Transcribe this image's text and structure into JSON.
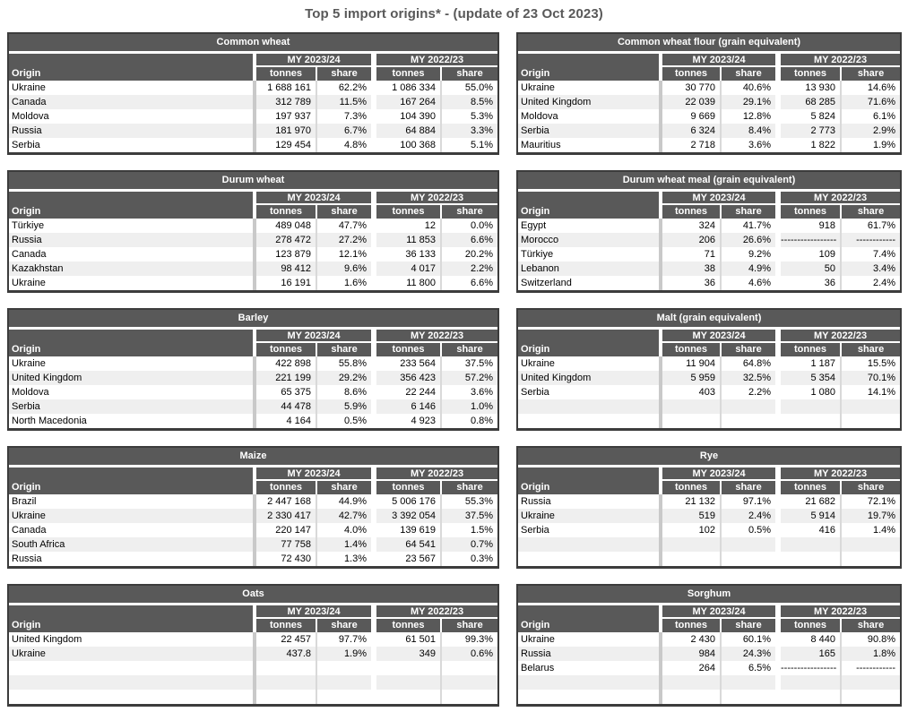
{
  "page_title": "Top 5 import origins* - (update of 23 Oct 2023)",
  "labels": {
    "origin": "Origin",
    "tonnes": "tonnes",
    "share": "share",
    "my_current": "MY 2023/24",
    "my_previous": "MY 2022/23"
  },
  "colors": {
    "header_bg": "#595959",
    "header_text": "#ffffff",
    "row_alt_bg": "#efefef",
    "border_dark": "#3c3c3c",
    "separator_gray": "#c9c9c9",
    "separator_thin": "#d9d9d9",
    "page_title_color": "#595959"
  },
  "tables": [
    {
      "title": "Common wheat",
      "column": "left",
      "empty_rows": 0,
      "rows": [
        {
          "origin": "Ukraine",
          "tonnes_2324": "1 688 161",
          "share_2324": "62.2%",
          "tonnes_2223": "1 086 334",
          "share_2223": "55.0%"
        },
        {
          "origin": "Canada",
          "tonnes_2324": "312 789",
          "share_2324": "11.5%",
          "tonnes_2223": "167 264",
          "share_2223": "8.5%"
        },
        {
          "origin": "Moldova",
          "tonnes_2324": "197 937",
          "share_2324": "7.3%",
          "tonnes_2223": "104 390",
          "share_2223": "5.3%"
        },
        {
          "origin": "Russia",
          "tonnes_2324": "181 970",
          "share_2324": "6.7%",
          "tonnes_2223": "64 884",
          "share_2223": "3.3%"
        },
        {
          "origin": "Serbia",
          "tonnes_2324": "129 454",
          "share_2324": "4.8%",
          "tonnes_2223": "100 368",
          "share_2223": "5.1%"
        }
      ]
    },
    {
      "title": "Common wheat flour (grain equivalent)",
      "column": "right",
      "empty_rows": 0,
      "rows": [
        {
          "origin": "Ukraine",
          "tonnes_2324": "30 770",
          "share_2324": "40.6%",
          "tonnes_2223": "13 930",
          "share_2223": "14.6%"
        },
        {
          "origin": "United Kingdom",
          "tonnes_2324": "22 039",
          "share_2324": "29.1%",
          "tonnes_2223": "68 285",
          "share_2223": "71.6%"
        },
        {
          "origin": "Moldova",
          "tonnes_2324": "9 669",
          "share_2324": "12.8%",
          "tonnes_2223": "5 824",
          "share_2223": "6.1%"
        },
        {
          "origin": "Serbia",
          "tonnes_2324": "6 324",
          "share_2324": "8.4%",
          "tonnes_2223": "2 773",
          "share_2223": "2.9%"
        },
        {
          "origin": "Mauritius",
          "tonnes_2324": "2 718",
          "share_2324": "3.6%",
          "tonnes_2223": "1 822",
          "share_2223": "1.9%"
        }
      ]
    },
    {
      "title": "Durum wheat",
      "column": "left",
      "empty_rows": 0,
      "rows": [
        {
          "origin": "Türkiye",
          "tonnes_2324": "489 048",
          "share_2324": "47.7%",
          "tonnes_2223": "12",
          "share_2223": "0.0%"
        },
        {
          "origin": "Russia",
          "tonnes_2324": "278 472",
          "share_2324": "27.2%",
          "tonnes_2223": "11 853",
          "share_2223": "6.6%"
        },
        {
          "origin": "Canada",
          "tonnes_2324": "123 879",
          "share_2324": "12.1%",
          "tonnes_2223": "36 133",
          "share_2223": "20.2%"
        },
        {
          "origin": "Kazakhstan",
          "tonnes_2324": "98 412",
          "share_2324": "9.6%",
          "tonnes_2223": "4 017",
          "share_2223": "2.2%"
        },
        {
          "origin": "Ukraine",
          "tonnes_2324": "16 191",
          "share_2324": "1.6%",
          "tonnes_2223": "11 800",
          "share_2223": "6.6%"
        }
      ]
    },
    {
      "title": "Durum wheat meal (grain equivalent)",
      "column": "right",
      "empty_rows": 0,
      "rows": [
        {
          "origin": "Egypt",
          "tonnes_2324": "324",
          "share_2324": "41.7%",
          "tonnes_2223": "918",
          "share_2223": "61.7%"
        },
        {
          "origin": "Morocco",
          "tonnes_2324": "206",
          "share_2324": "26.6%",
          "tonnes_2223": "-----------------",
          "share_2223": "------------"
        },
        {
          "origin": "Türkiye",
          "tonnes_2324": "71",
          "share_2324": "9.2%",
          "tonnes_2223": "109",
          "share_2223": "7.4%"
        },
        {
          "origin": "Lebanon",
          "tonnes_2324": "38",
          "share_2324": "4.9%",
          "tonnes_2223": "50",
          "share_2223": "3.4%"
        },
        {
          "origin": "Switzerland",
          "tonnes_2324": "36",
          "share_2324": "4.6%",
          "tonnes_2223": "36",
          "share_2223": "2.4%"
        }
      ]
    },
    {
      "title": "Barley",
      "column": "left",
      "empty_rows": 0,
      "rows": [
        {
          "origin": "Ukraine",
          "tonnes_2324": "422 898",
          "share_2324": "55.8%",
          "tonnes_2223": "233 564",
          "share_2223": "37.5%"
        },
        {
          "origin": "United Kingdom",
          "tonnes_2324": "221 199",
          "share_2324": "29.2%",
          "tonnes_2223": "356 423",
          "share_2223": "57.2%"
        },
        {
          "origin": "Moldova",
          "tonnes_2324": "65 375",
          "share_2324": "8.6%",
          "tonnes_2223": "22 244",
          "share_2223": "3.6%"
        },
        {
          "origin": "Serbia",
          "tonnes_2324": "44 478",
          "share_2324": "5.9%",
          "tonnes_2223": "6 146",
          "share_2223": "1.0%"
        },
        {
          "origin": "North Macedonia",
          "tonnes_2324": "4 164",
          "share_2324": "0.5%",
          "tonnes_2223": "4 923",
          "share_2223": "0.8%"
        }
      ]
    },
    {
      "title": "Malt (grain equivalent)",
      "column": "right",
      "empty_rows": 2,
      "rows": [
        {
          "origin": "Ukraine",
          "tonnes_2324": "11 904",
          "share_2324": "64.8%",
          "tonnes_2223": "1 187",
          "share_2223": "15.5%"
        },
        {
          "origin": "United Kingdom",
          "tonnes_2324": "5 959",
          "share_2324": "32.5%",
          "tonnes_2223": "5 354",
          "share_2223": "70.1%"
        },
        {
          "origin": "Serbia",
          "tonnes_2324": "403",
          "share_2324": "2.2%",
          "tonnes_2223": "1 080",
          "share_2223": "14.1%"
        }
      ]
    },
    {
      "title": "Maize",
      "column": "left",
      "empty_rows": 0,
      "rows": [
        {
          "origin": "Brazil",
          "tonnes_2324": "2 447 168",
          "share_2324": "44.9%",
          "tonnes_2223": "5 006 176",
          "share_2223": "55.3%"
        },
        {
          "origin": "Ukraine",
          "tonnes_2324": "2 330 417",
          "share_2324": "42.7%",
          "tonnes_2223": "3 392 054",
          "share_2223": "37.5%"
        },
        {
          "origin": "Canada",
          "tonnes_2324": "220 147",
          "share_2324": "4.0%",
          "tonnes_2223": "139 619",
          "share_2223": "1.5%"
        },
        {
          "origin": "South Africa",
          "tonnes_2324": "77 758",
          "share_2324": "1.4%",
          "tonnes_2223": "64 541",
          "share_2223": "0.7%"
        },
        {
          "origin": "Russia",
          "tonnes_2324": "72 430",
          "share_2324": "1.3%",
          "tonnes_2223": "23 567",
          "share_2223": "0.3%"
        }
      ]
    },
    {
      "title": "Rye",
      "column": "right",
      "empty_rows": 2,
      "rows": [
        {
          "origin": "Russia",
          "tonnes_2324": "21 132",
          "share_2324": "97.1%",
          "tonnes_2223": "21 682",
          "share_2223": "72.1%"
        },
        {
          "origin": "Ukraine",
          "tonnes_2324": "519",
          "share_2324": "2.4%",
          "tonnes_2223": "5 914",
          "share_2223": "19.7%"
        },
        {
          "origin": "Serbia",
          "tonnes_2324": "102",
          "share_2324": "0.5%",
          "tonnes_2223": "416",
          "share_2223": "1.4%"
        }
      ]
    },
    {
      "title": "Oats",
      "column": "left",
      "empty_rows": 3,
      "rows": [
        {
          "origin": "United Kingdom",
          "tonnes_2324": "22 457",
          "share_2324": "97.7%",
          "tonnes_2223": "61 501",
          "share_2223": "99.3%"
        },
        {
          "origin": "Ukraine",
          "tonnes_2324": "437.8",
          "share_2324": "1.9%",
          "tonnes_2223": "349",
          "share_2223": "0.6%"
        }
      ]
    },
    {
      "title": "Sorghum",
      "column": "right",
      "empty_rows": 2,
      "rows": [
        {
          "origin": "Ukraine",
          "tonnes_2324": "2 430",
          "share_2324": "60.1%",
          "tonnes_2223": "8 440",
          "share_2223": "90.8%"
        },
        {
          "origin": "Russia",
          "tonnes_2324": "984",
          "share_2324": "24.3%",
          "tonnes_2223": "165",
          "share_2223": "1.8%"
        },
        {
          "origin": "Belarus",
          "tonnes_2324": "264",
          "share_2324": "6.5%",
          "tonnes_2223": "-----------------",
          "share_2223": "------------"
        }
      ]
    }
  ]
}
